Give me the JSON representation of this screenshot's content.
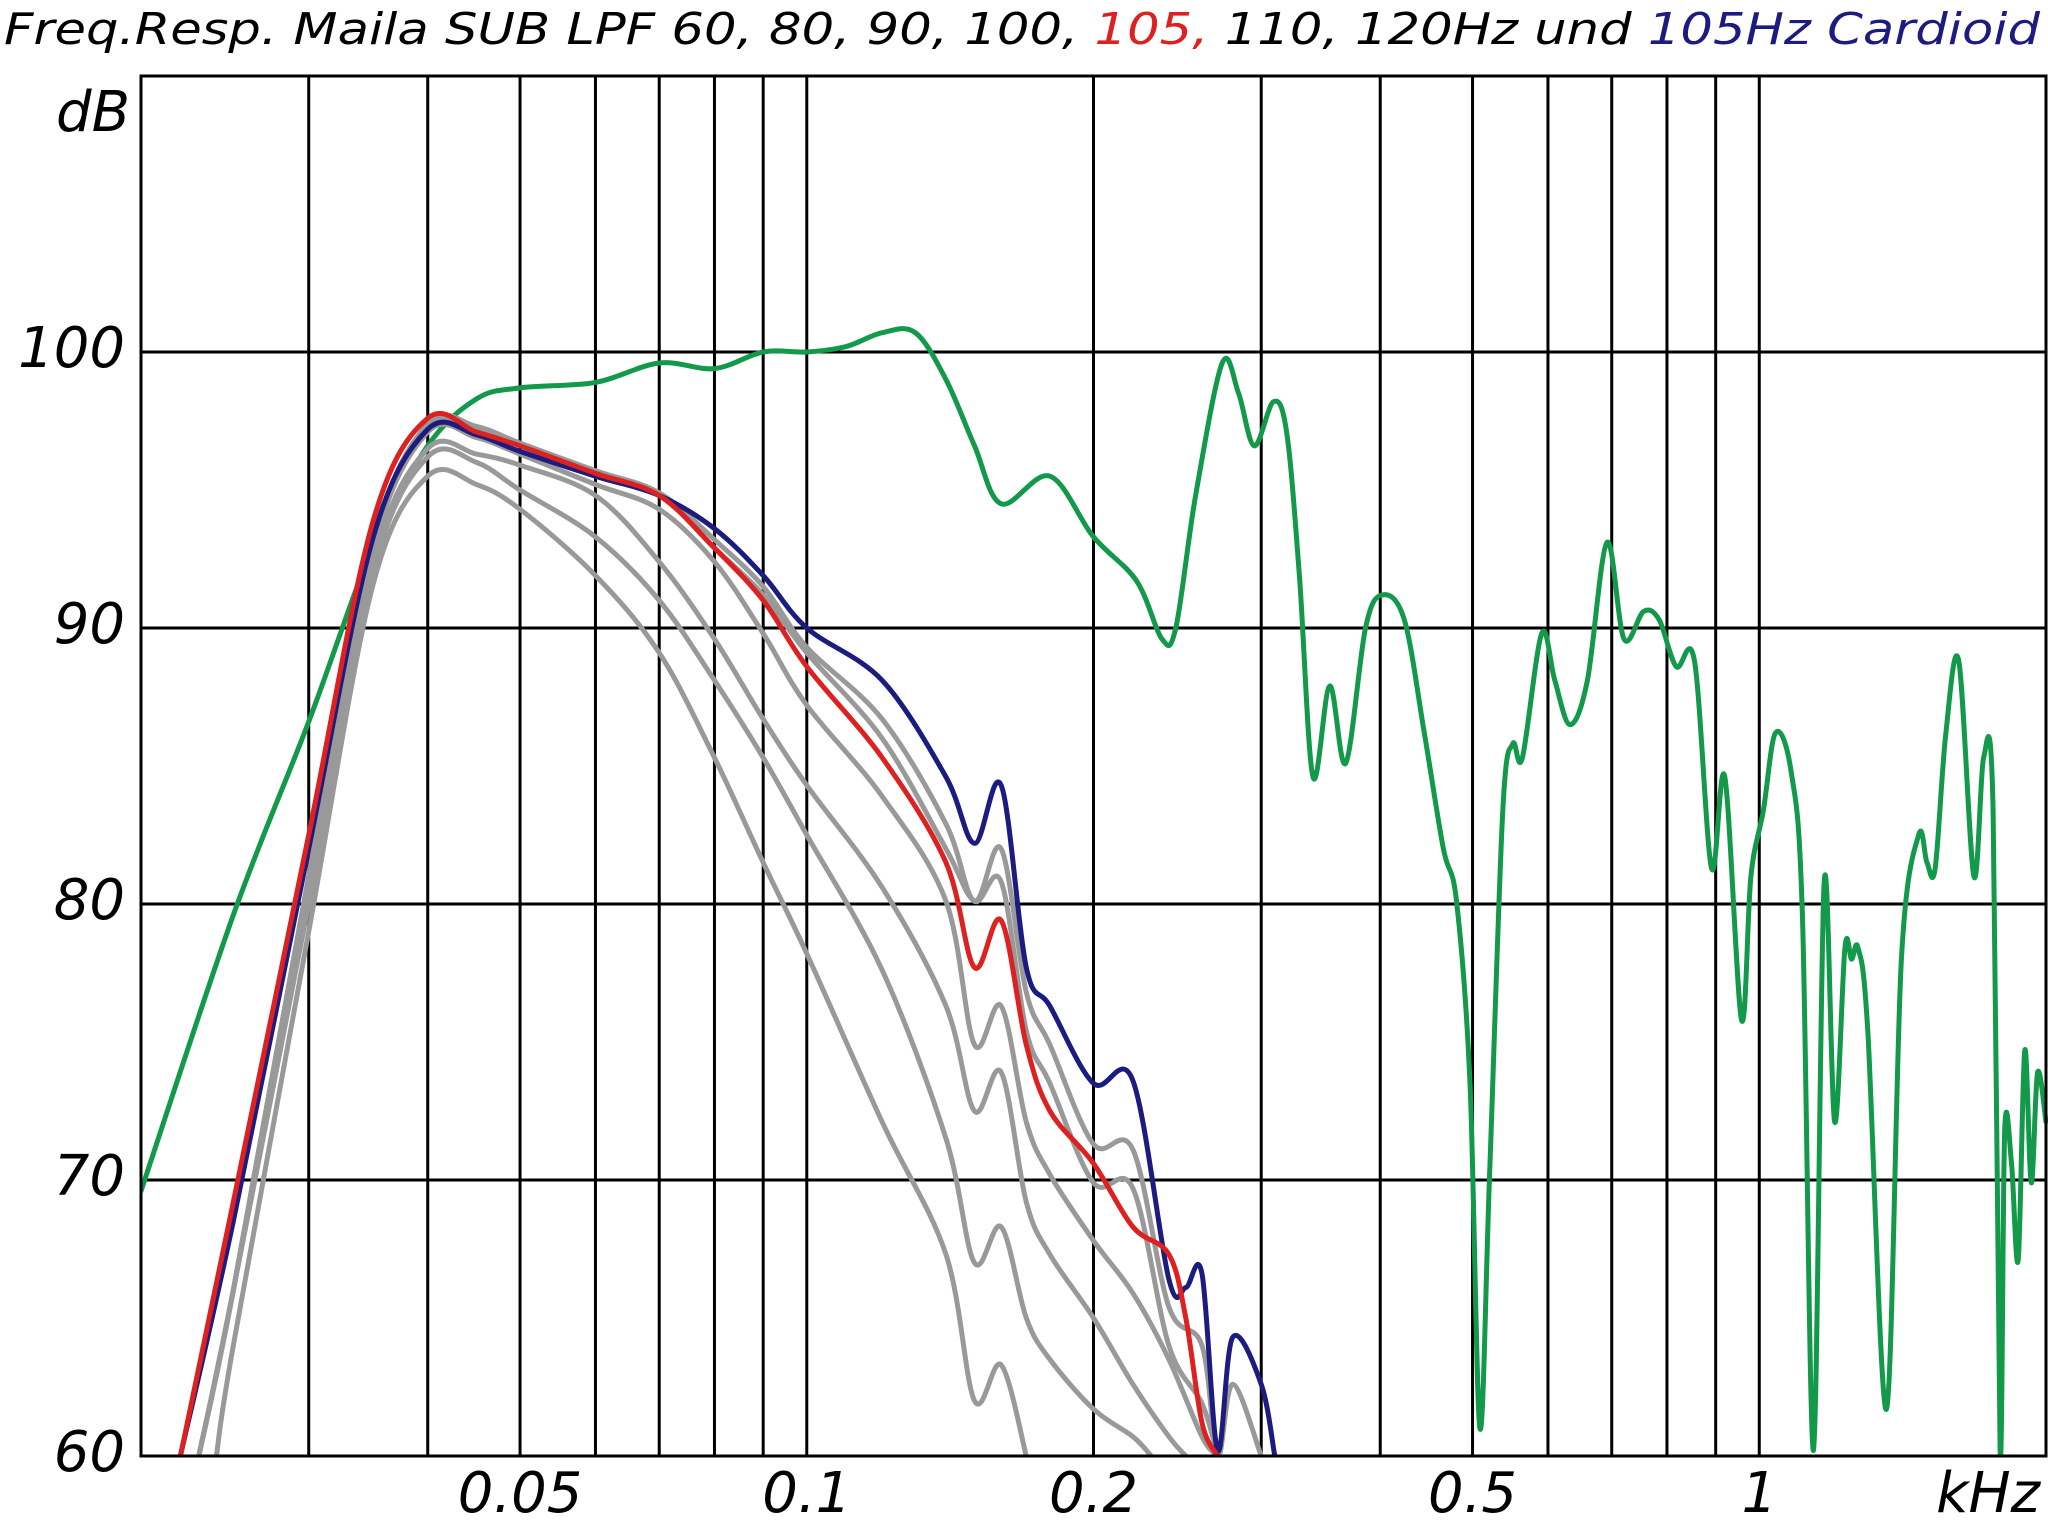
{
  "chart_data": {
    "type": "line",
    "title": [
      {
        "text": "Freq.Resp. Maila SUB LPF 60, 80, 90, 100, ",
        "color": "#000000"
      },
      {
        "text": "105,",
        "color": "#dd2020"
      },
      {
        "text": " 110, 120Hz und ",
        "color": "#000000"
      },
      {
        "text": "105Hz Cardioid",
        "color": "#1c1c80"
      }
    ],
    "y_label": "dB",
    "x_unit": "kHz",
    "log_x": true,
    "grid": true,
    "xlim": [
      0.02,
      2
    ],
    "ylim": [
      60,
      110
    ],
    "xticks": [
      0.05,
      0.1,
      0.2,
      0.5,
      1
    ],
    "x_minor_grid": [
      0.03,
      0.04,
      0.06,
      0.07,
      0.08,
      0.09,
      0.3,
      0.4,
      0.6,
      0.7,
      0.8,
      0.9
    ],
    "yticks": [
      60,
      70,
      80,
      90,
      100
    ],
    "series": [
      {
        "color": "#12994a",
        "x": [
          0.02,
          0.025,
          0.03,
          0.035,
          0.04,
          0.045,
          0.05,
          0.06,
          0.07,
          0.08,
          0.09,
          0.1,
          0.11,
          0.12,
          0.13,
          0.14,
          0.15,
          0.16,
          0.18,
          0.2,
          0.222,
          0.236,
          0.244,
          0.256,
          0.273,
          0.284,
          0.295,
          0.309,
          0.319,
          0.329,
          0.34,
          0.354,
          0.368,
          0.386,
          0.402,
          0.424,
          0.445,
          0.466,
          0.481,
          0.497,
          0.509,
          0.521,
          0.538,
          0.551,
          0.564,
          0.591,
          0.61,
          0.633,
          0.66,
          0.692,
          0.721,
          0.756,
          0.785,
          0.818,
          0.855,
          0.891,
          0.92,
          0.958,
          0.98,
          1.01,
          1.04,
          1.08,
          1.11,
          1.14,
          1.17,
          1.2,
          1.23,
          1.25,
          1.27,
          1.3,
          1.36,
          1.41,
          1.47,
          1.5,
          1.53,
          1.57,
          1.62,
          1.68,
          1.72,
          1.76,
          1.79,
          1.81,
          1.84,
          1.87,
          1.9,
          1.93,
          1.96,
          2.0
        ],
        "values": [
          69.6,
          79.6,
          86.6,
          92.9,
          96.6,
          98.3,
          98.7,
          98.9,
          99.6,
          99.4,
          100.0,
          100.0,
          100.2,
          100.7,
          100.7,
          99.0,
          96.6,
          94.5,
          95.5,
          93.3,
          91.7,
          89.6,
          90.0,
          94.8,
          99.6,
          98.5,
          96.6,
          98.2,
          97.1,
          91.9,
          84.6,
          87.9,
          85.1,
          90.0,
          91.2,
          90.3,
          86.2,
          82.0,
          80.1,
          73.5,
          61.0,
          70.2,
          83.4,
          85.8,
          85.3,
          89.8,
          88.1,
          86.5,
          88.1,
          93.1,
          89.6,
          90.6,
          90.3,
          88.6,
          88.8,
          81.3,
          84.6,
          75.8,
          81.0,
          83.4,
          86.2,
          84.8,
          79.6,
          60.2,
          80.8,
          72.1,
          78.4,
          78.0,
          78.4,
          75.4,
          61.7,
          78.0,
          82.5,
          81.5,
          81.3,
          86.2,
          88.8,
          81.0,
          85.3,
          83.4,
          60.2,
          71.8,
          70.6,
          67.1,
          74.7,
          69.9,
          73.9,
          72.1
        ]
      },
      {
        "color": "#999999",
        "x": [
          0.024,
          0.025,
          0.03,
          0.035,
          0.04,
          0.045,
          0.05,
          0.06,
          0.07,
          0.08,
          0.09,
          0.1,
          0.12,
          0.14,
          0.15,
          0.16,
          0.17
        ],
        "values": [
          60,
          64,
          79,
          91.5,
          95.5,
          95.2,
          94.3,
          91.9,
          89.1,
          85.3,
          81.5,
          78.2,
          72.1,
          67.3,
          62.0,
          63.3,
          60
        ]
      },
      {
        "color": "#999999",
        "x": [
          0.023,
          0.025,
          0.03,
          0.035,
          0.04,
          0.045,
          0.05,
          0.06,
          0.07,
          0.08,
          0.09,
          0.1,
          0.12,
          0.14,
          0.15,
          0.16,
          0.17,
          0.18,
          0.2,
          0.22,
          0.23
        ],
        "values": [
          60,
          66,
          80,
          92,
          96.2,
          96.0,
          95.0,
          93.3,
          91.0,
          88.1,
          85.3,
          82.5,
          77.6,
          71.5,
          67.0,
          68.3,
          65.0,
          63.5,
          61.7,
          60.7,
          60
        ]
      },
      {
        "color": "#999999",
        "x": [
          0.023,
          0.025,
          0.03,
          0.035,
          0.04,
          0.045,
          0.05,
          0.06,
          0.07,
          0.08,
          0.09,
          0.1,
          0.12,
          0.14,
          0.15,
          0.16,
          0.17,
          0.18,
          0.2,
          0.22,
          0.24,
          0.25
        ],
        "values": [
          60,
          66,
          80.5,
          92.3,
          96.5,
          96.3,
          95.9,
          94.8,
          92.4,
          89.6,
          86.7,
          84.3,
          80.6,
          76.3,
          72.5,
          73.9,
          69.2,
          67.3,
          65.0,
          62.6,
          60.7,
          60
        ]
      },
      {
        "color": "#999999",
        "x": [
          0.023,
          0.025,
          0.03,
          0.035,
          0.04,
          0.045,
          0.05,
          0.06,
          0.07,
          0.08,
          0.09,
          0.1,
          0.12,
          0.14,
          0.15,
          0.16,
          0.17,
          0.18,
          0.2,
          0.22,
          0.24,
          0.26,
          0.27
        ],
        "values": [
          60,
          66,
          81,
          92.8,
          97.1,
          96.9,
          96.3,
          95.2,
          94.3,
          92.4,
          89.8,
          87.2,
          83.9,
          80.1,
          74.9,
          76.3,
          72.1,
          70.2,
          67.8,
          65.9,
          63.5,
          60.7,
          60
        ]
      },
      {
        "color": "#999999",
        "x": [
          0.023,
          0.025,
          0.03,
          0.035,
          0.04,
          0.045,
          0.05,
          0.06,
          0.07,
          0.08,
          0.09,
          0.1,
          0.12,
          0.14,
          0.15,
          0.16,
          0.17,
          0.18,
          0.2,
          0.22,
          0.24,
          0.26,
          0.27
        ],
        "values": [
          60,
          66,
          81,
          93,
          97.3,
          97.2,
          96.6,
          95.6,
          94.8,
          92.9,
          91.2,
          89.1,
          86.0,
          82.0,
          80.1,
          80.8,
          75.4,
          73.5,
          69.9,
          69.7,
          64.0,
          61.9,
          60
        ]
      },
      {
        "color": "#999999",
        "x": [
          0.023,
          0.025,
          0.03,
          0.035,
          0.04,
          0.045,
          0.05,
          0.06,
          0.07,
          0.08,
          0.09,
          0.1,
          0.12,
          0.14,
          0.15,
          0.16,
          0.17,
          0.18,
          0.2,
          0.22,
          0.24,
          0.26,
          0.27,
          0.28,
          0.3
        ],
        "values": [
          60,
          66,
          81,
          93,
          97.4,
          97.3,
          96.7,
          95.7,
          94.9,
          93.2,
          91.5,
          89.3,
          86.7,
          82.9,
          80.1,
          82.0,
          76.8,
          74.9,
          71.3,
          71.1,
          65.4,
          64.0,
          60,
          62.6,
          60
        ]
      },
      {
        "color": "#1c1c80",
        "x": [
          0.022,
          0.025,
          0.03,
          0.035,
          0.04,
          0.045,
          0.05,
          0.06,
          0.07,
          0.08,
          0.09,
          0.1,
          0.12,
          0.14,
          0.15,
          0.16,
          0.17,
          0.18,
          0.2,
          0.22,
          0.24,
          0.25,
          0.26,
          0.27,
          0.28,
          0.3,
          0.31
        ],
        "values": [
          60,
          68.5,
          82,
          93.2,
          97.2,
          97.0,
          96.4,
          95.5,
          94.8,
          93.6,
          91.9,
          90.0,
          88.1,
          84.6,
          82.2,
          84.3,
          77.7,
          76.3,
          73.5,
          73.6,
          66.4,
          66.1,
          66.6,
          60.2,
          64.3,
          62.6,
          60
        ]
      },
      {
        "color": "#dd2020",
        "x": [
          0.022,
          0.025,
          0.03,
          0.035,
          0.04,
          0.045,
          0.05,
          0.06,
          0.07,
          0.08,
          0.09,
          0.1,
          0.12,
          0.14,
          0.15,
          0.16,
          0.17,
          0.18,
          0.2,
          0.22,
          0.24,
          0.25,
          0.26,
          0.27
        ],
        "values": [
          60,
          69.2,
          82.5,
          93.8,
          97.6,
          97.1,
          96.6,
          95.6,
          94.8,
          92.9,
          91.0,
          88.6,
          85.3,
          81.5,
          77.7,
          79.4,
          74.9,
          72.5,
          70.6,
          68.3,
          67.3,
          65.0,
          61.2,
          60
        ]
      }
    ]
  }
}
